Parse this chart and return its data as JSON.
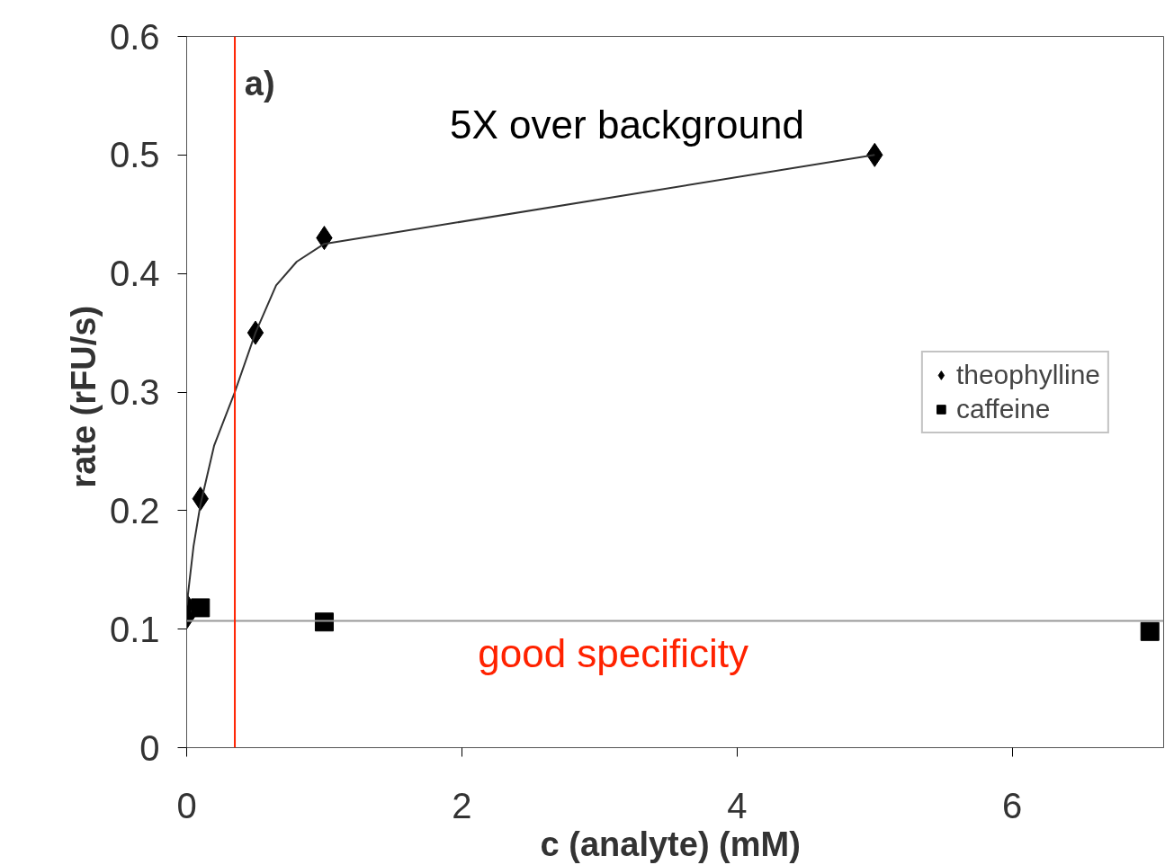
{
  "chart_data": {
    "type": "scatter",
    "xlabel": "c (analyte)  (mM)",
    "ylabel": "rate  (rFU/s)",
    "xlim": [
      0,
      7.1
    ],
    "ylim": [
      0,
      0.6
    ],
    "xticks": [
      0,
      2,
      4,
      6
    ],
    "yticks": [
      0,
      0.1,
      0.2,
      0.3,
      0.4,
      0.5,
      0.6
    ],
    "series": [
      {
        "name": "theophylline",
        "color": "#000000",
        "marker": "diamond",
        "x": [
          0,
          0,
          0.1,
          0.5,
          1,
          5
        ],
        "values": [
          0.12,
          0.11,
          0.21,
          0.35,
          0.43,
          0.5
        ]
      },
      {
        "name": "caffeine",
        "color": "#000000",
        "marker": "square",
        "x": [
          0.1,
          1,
          7
        ],
        "values": [
          0.118,
          0.106,
          0.098
        ]
      },
      {
        "type": "line",
        "color": "#333333",
        "x": [
          0,
          0.05,
          0.1,
          0.2,
          0.35,
          0.5,
          0.65,
          0.8,
          1,
          5
        ],
        "values": [
          0.12,
          0.17,
          0.205,
          0.255,
          0.3,
          0.35,
          0.39,
          0.41,
          0.425,
          0.5
        ]
      },
      {
        "type": "line",
        "color": "#999999",
        "x": [
          0,
          7.1
        ],
        "values": [
          0.107,
          0.107
        ]
      }
    ],
    "annotations": [
      "a)",
      "5X over background",
      "good specificity"
    ],
    "ref_lines": [
      {
        "axis": "x",
        "value": 0.35,
        "color": "#ff2200"
      }
    ],
    "legend": "right",
    "grid": false
  }
}
